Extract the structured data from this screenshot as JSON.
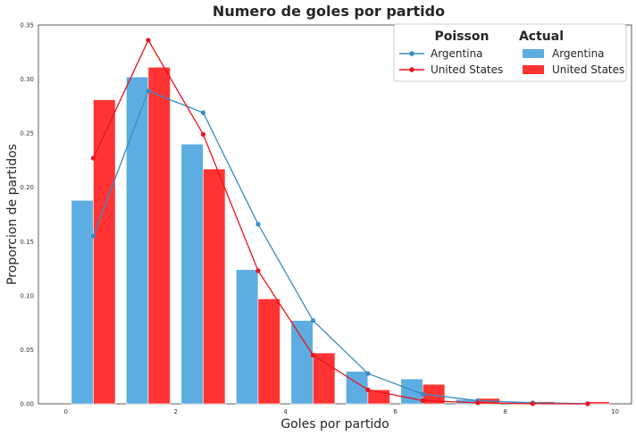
{
  "chart_data": {
    "type": "bar",
    "title": "Numero de goles por partido",
    "xlabel": "Goles por partido",
    "ylabel": "Proporcion de partidos",
    "xlim": [
      -0.5,
      10.3
    ],
    "ylim": [
      0,
      0.35
    ],
    "xticks": [
      0,
      2,
      4,
      6,
      8,
      10
    ],
    "yticks": [
      0.0,
      0.05,
      0.1,
      0.15,
      0.2,
      0.25,
      0.3,
      0.35
    ],
    "legend": {
      "placement": "top-right",
      "poisson_header": "Poisson",
      "actual_header": "Actual"
    },
    "actual_series": [
      {
        "name": "Argentina",
        "color": "#5dade2",
        "x": [
          0,
          1,
          2,
          3,
          4,
          5,
          6,
          7,
          8,
          9
        ],
        "values": [
          0.188,
          0.302,
          0.24,
          0.124,
          0.077,
          0.03,
          0.023,
          0.004,
          0.002,
          0.001
        ]
      },
      {
        "name": "United States",
        "color": "#ff3333",
        "x": [
          0,
          1,
          2,
          3,
          4,
          5,
          6,
          7,
          8,
          9
        ],
        "values": [
          0.281,
          0.311,
          0.217,
          0.097,
          0.047,
          0.013,
          0.018,
          0.005,
          0.002,
          0.002
        ]
      }
    ],
    "poisson_series": [
      {
        "name": "Argentina",
        "color": "#3a8bc2",
        "x": [
          0.5,
          1.5,
          2.5,
          3.5,
          4.5,
          5.5,
          6.5,
          7.5,
          8.5,
          9.5
        ],
        "values": [
          0.155,
          0.289,
          0.269,
          0.166,
          0.077,
          0.028,
          0.009,
          0.003,
          0.001,
          0.0002
        ]
      },
      {
        "name": "United States",
        "color": "#e8141c",
        "x": [
          0.5,
          1.5,
          2.5,
          3.5,
          4.5,
          5.5,
          6.5,
          7.5,
          8.5,
          9.5
        ],
        "values": [
          0.227,
          0.336,
          0.249,
          0.123,
          0.045,
          0.013,
          0.003,
          0.001,
          0.0001,
          0.0
        ]
      }
    ]
  }
}
